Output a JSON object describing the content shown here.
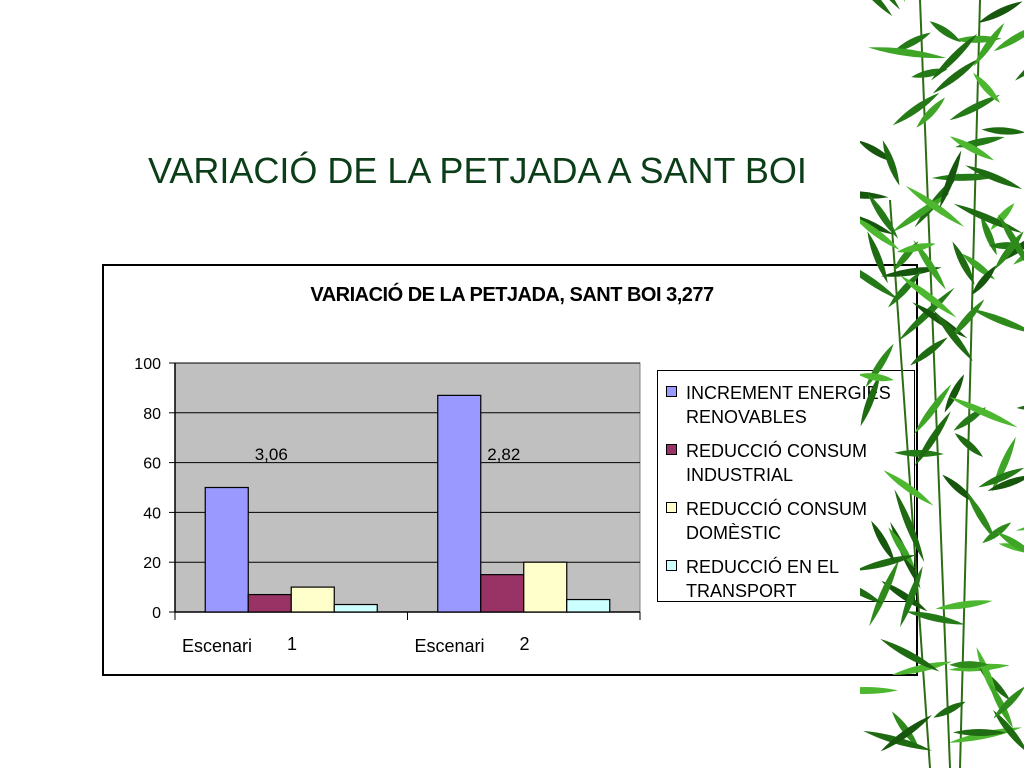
{
  "slide": {
    "title": "VARIACIÓ DE LA PETJADA A SANT BOI"
  },
  "chart_data": {
    "type": "bar",
    "title": "VARIACIÓ DE LA PETJADA, SANT BOI 3,277",
    "xlabel": "",
    "ylabel": "",
    "ylim": [
      0,
      100
    ],
    "yticks": [
      0,
      20,
      40,
      60,
      80,
      100
    ],
    "grid": true,
    "legend_position": "right",
    "categories": [
      {
        "label": "Escenari",
        "number": "1"
      },
      {
        "label": "Escenari",
        "number": "2"
      }
    ],
    "annotations": [
      "3,06",
      "2,82"
    ],
    "series": [
      {
        "name": "INCREMENT ENERGIES RENOVABLES",
        "color": "#9999ff",
        "values": [
          50,
          87
        ]
      },
      {
        "name": "REDUCCIÓ CONSUM INDUSTRIAL",
        "color": "#993366",
        "values": [
          7,
          15
        ]
      },
      {
        "name": "REDUCCIÓ CONSUM DOMÈSTIC",
        "color": "#ffffcc",
        "values": [
          10,
          20
        ]
      },
      {
        "name": "REDUCCIÓ EN EL TRANSPORT",
        "color": "#ccffff",
        "values": [
          3,
          5
        ]
      }
    ],
    "plot_background": "#c0c0c0"
  }
}
